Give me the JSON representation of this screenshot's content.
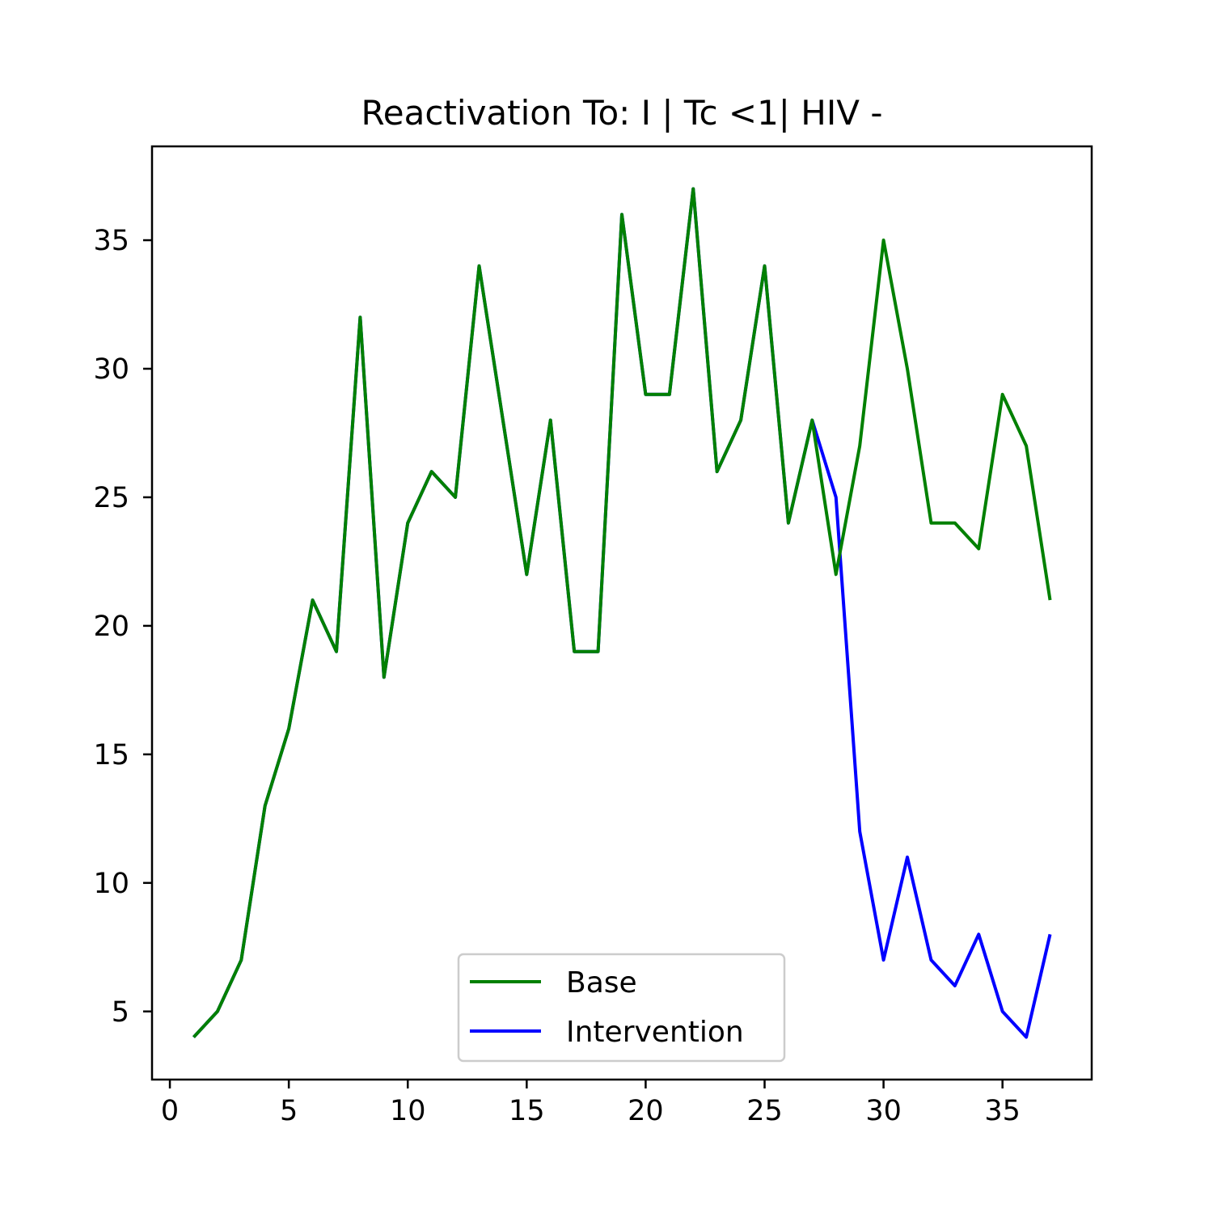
{
  "chart_data": {
    "type": "line",
    "title": "Reactivation To: I | Tc <1| HIV -",
    "xlabel": "",
    "ylabel": "",
    "xlim": [
      -0.75,
      38.75
    ],
    "ylim": [
      2.35,
      38.65
    ],
    "xticks": [
      0,
      5,
      10,
      15,
      20,
      25,
      30,
      35
    ],
    "yticks": [
      5,
      10,
      15,
      20,
      25,
      30,
      35
    ],
    "grid": false,
    "legend_position": "lower center",
    "x": [
      1,
      2,
      3,
      4,
      5,
      6,
      7,
      8,
      9,
      10,
      11,
      12,
      13,
      14,
      15,
      16,
      17,
      18,
      19,
      20,
      21,
      22,
      23,
      24,
      25,
      26,
      27,
      28,
      29,
      30,
      31,
      32,
      33,
      34,
      35,
      36,
      37
    ],
    "series": [
      {
        "name": "Intervention",
        "color": "#0000ff",
        "values": [
          4,
          5,
          7,
          13,
          16,
          21,
          19,
          32,
          18,
          24,
          26,
          25,
          34,
          28,
          22,
          28,
          19,
          19,
          36,
          29,
          29,
          37,
          26,
          28,
          34,
          24,
          28,
          25,
          12,
          7,
          11,
          7,
          6,
          8,
          5,
          4,
          8
        ]
      },
      {
        "name": "Base",
        "color": "#008000",
        "values": [
          4,
          5,
          7,
          13,
          16,
          21,
          19,
          32,
          18,
          24,
          26,
          25,
          34,
          28,
          22,
          28,
          19,
          19,
          36,
          29,
          29,
          37,
          26,
          28,
          34,
          24,
          28,
          22,
          27,
          35,
          30,
          24,
          24,
          23,
          29,
          27,
          21
        ]
      }
    ],
    "legend_order": [
      "Base",
      "Intervention"
    ]
  }
}
